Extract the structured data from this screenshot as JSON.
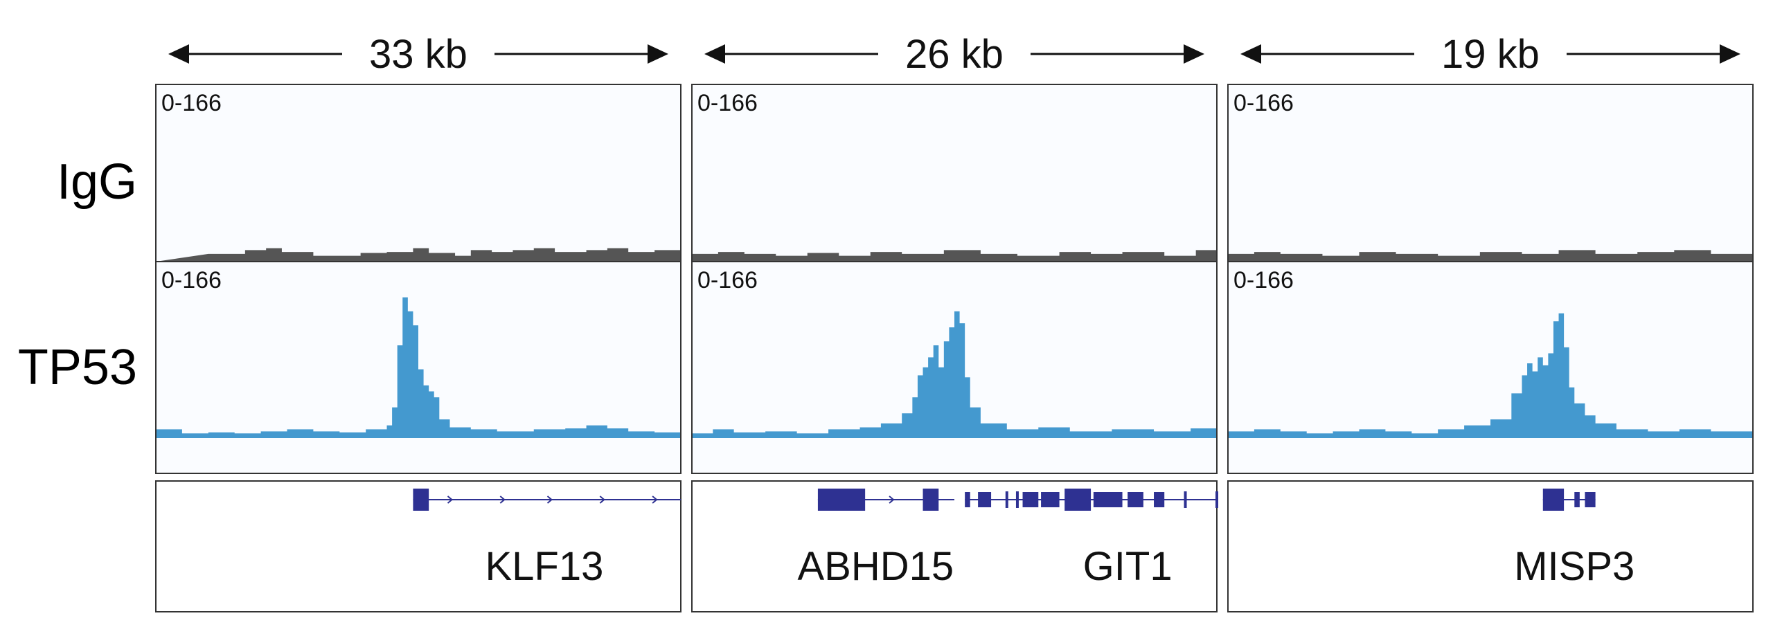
{
  "chart_data": {
    "type": "area",
    "rows": [
      {
        "label": "IgG",
        "range_label": "0-166",
        "color": "#555555"
      },
      {
        "label": "TP53",
        "range_label": "0-166",
        "color": "#4499cf"
      }
    ],
    "gene_color": "#2e3192",
    "track_background": "#fafcff",
    "ylim": [
      0,
      166
    ],
    "panels": [
      {
        "span_label": "33 kb",
        "genes": [
          {
            "name": "KLF13",
            "label_pos": 0.74
          }
        ],
        "features": [
          {
            "type": "line",
            "x0": 0.49,
            "x1": 1.0
          },
          {
            "type": "exon",
            "x0": 0.49,
            "x1": 0.52,
            "thick": true
          },
          {
            "type": "chevrons",
            "at": [
              0.56,
              0.66,
              0.75,
              0.85,
              0.95
            ]
          }
        ],
        "igg": [
          [
            0.1,
            8
          ],
          [
            0.17,
            12
          ],
          [
            0.21,
            14
          ],
          [
            0.24,
            10
          ],
          [
            0.3,
            6
          ],
          [
            0.39,
            9
          ],
          [
            0.44,
            10
          ],
          [
            0.49,
            14
          ],
          [
            0.52,
            9
          ],
          [
            0.57,
            6
          ],
          [
            0.6,
            12
          ],
          [
            0.64,
            10
          ],
          [
            0.68,
            12
          ],
          [
            0.72,
            14
          ],
          [
            0.76,
            10
          ],
          [
            0.82,
            12
          ],
          [
            0.86,
            14
          ],
          [
            0.9,
            10
          ],
          [
            0.95,
            12
          ]
        ],
        "tp53": [
          [
            0.0,
            8
          ],
          [
            0.05,
            4
          ],
          [
            0.1,
            5
          ],
          [
            0.15,
            4
          ],
          [
            0.2,
            6
          ],
          [
            0.25,
            8
          ],
          [
            0.3,
            6
          ],
          [
            0.35,
            5
          ],
          [
            0.4,
            8
          ],
          [
            0.44,
            12
          ],
          [
            0.45,
            30
          ],
          [
            0.46,
            92
          ],
          [
            0.47,
            140
          ],
          [
            0.48,
            126
          ],
          [
            0.49,
            112
          ],
          [
            0.5,
            68
          ],
          [
            0.51,
            52
          ],
          [
            0.52,
            46
          ],
          [
            0.53,
            40
          ],
          [
            0.54,
            18
          ],
          [
            0.56,
            10
          ],
          [
            0.6,
            8
          ],
          [
            0.65,
            6
          ],
          [
            0.72,
            8
          ],
          [
            0.78,
            9
          ],
          [
            0.82,
            12
          ],
          [
            0.86,
            9
          ],
          [
            0.9,
            6
          ],
          [
            0.95,
            5
          ],
          [
            1.0,
            4
          ]
        ]
      },
      {
        "span_label": "26 kb",
        "genes": [
          {
            "name": "ABHD15",
            "label_pos": 0.35
          },
          {
            "name": "GIT1",
            "label_pos": 0.83
          }
        ],
        "features": [
          {
            "type": "line",
            "x0": 0.24,
            "x1": 0.5
          },
          {
            "type": "exon",
            "x0": 0.24,
            "x1": 0.33,
            "thick": true
          },
          {
            "type": "exon",
            "x0": 0.44,
            "x1": 0.47,
            "thick": true
          },
          {
            "type": "chevrons",
            "at": [
              0.38
            ]
          },
          {
            "type": "line",
            "x0": 0.52,
            "x1": 1.0
          },
          {
            "type": "exon",
            "x0": 0.52,
            "x1": 0.53,
            "thick": false
          },
          {
            "type": "exon",
            "x0": 0.545,
            "x1": 0.57,
            "thick": false
          },
          {
            "type": "exon",
            "x0": 0.63,
            "x1": 0.66,
            "thick": false
          },
          {
            "type": "exon",
            "x0": 0.665,
            "x1": 0.7,
            "thick": false
          },
          {
            "type": "exon",
            "x0": 0.71,
            "x1": 0.76,
            "thick": true
          },
          {
            "type": "exon",
            "x0": 0.765,
            "x1": 0.82,
            "thick": false
          },
          {
            "type": "exon",
            "x0": 0.83,
            "x1": 0.86,
            "thick": false
          },
          {
            "type": "exon",
            "x0": 0.88,
            "x1": 0.9,
            "thick": false
          },
          {
            "type": "tick",
            "at": [
              0.6,
              0.62,
              0.94,
              1.0
            ]
          }
        ],
        "igg": [
          [
            0.0,
            8
          ],
          [
            0.05,
            10
          ],
          [
            0.1,
            8
          ],
          [
            0.16,
            6
          ],
          [
            0.22,
            9
          ],
          [
            0.28,
            6
          ],
          [
            0.34,
            10
          ],
          [
            0.4,
            8
          ],
          [
            0.48,
            12
          ],
          [
            0.55,
            8
          ],
          [
            0.62,
            6
          ],
          [
            0.7,
            10
          ],
          [
            0.76,
            8
          ],
          [
            0.82,
            10
          ],
          [
            0.9,
            6
          ],
          [
            0.96,
            12
          ],
          [
            1.0,
            14
          ]
        ],
        "tp53": [
          [
            0.0,
            4
          ],
          [
            0.04,
            8
          ],
          [
            0.08,
            5
          ],
          [
            0.14,
            6
          ],
          [
            0.2,
            4
          ],
          [
            0.26,
            8
          ],
          [
            0.32,
            10
          ],
          [
            0.36,
            14
          ],
          [
            0.4,
            24
          ],
          [
            0.42,
            40
          ],
          [
            0.43,
            62
          ],
          [
            0.44,
            70
          ],
          [
            0.45,
            80
          ],
          [
            0.46,
            92
          ],
          [
            0.47,
            70
          ],
          [
            0.48,
            96
          ],
          [
            0.49,
            110
          ],
          [
            0.5,
            126
          ],
          [
            0.51,
            114
          ],
          [
            0.52,
            60
          ],
          [
            0.53,
            30
          ],
          [
            0.55,
            14
          ],
          [
            0.6,
            8
          ],
          [
            0.66,
            10
          ],
          [
            0.72,
            6
          ],
          [
            0.8,
            8
          ],
          [
            0.88,
            6
          ],
          [
            0.95,
            9
          ],
          [
            1.0,
            4
          ]
        ]
      },
      {
        "span_label": "19 kb",
        "genes": [
          {
            "name": "MISP3",
            "label_pos": 0.66
          }
        ],
        "features": [
          {
            "type": "line",
            "x0": 0.6,
            "x1": 0.7
          },
          {
            "type": "exon",
            "x0": 0.6,
            "x1": 0.64,
            "thick": true
          },
          {
            "type": "exon",
            "x0": 0.66,
            "x1": 0.67,
            "thick": false
          },
          {
            "type": "exon",
            "x0": 0.68,
            "x1": 0.7,
            "thick": false
          }
        ],
        "igg": [
          [
            0.0,
            8
          ],
          [
            0.05,
            10
          ],
          [
            0.1,
            8
          ],
          [
            0.18,
            6
          ],
          [
            0.25,
            10
          ],
          [
            0.32,
            8
          ],
          [
            0.4,
            6
          ],
          [
            0.48,
            10
          ],
          [
            0.56,
            8
          ],
          [
            0.63,
            12
          ],
          [
            0.7,
            8
          ],
          [
            0.78,
            10
          ],
          [
            0.85,
            12
          ],
          [
            0.92,
            8
          ],
          [
            1.0,
            10
          ]
        ],
        "tp53": [
          [
            0.0,
            6
          ],
          [
            0.05,
            8
          ],
          [
            0.1,
            6
          ],
          [
            0.15,
            4
          ],
          [
            0.2,
            6
          ],
          [
            0.25,
            8
          ],
          [
            0.3,
            6
          ],
          [
            0.35,
            4
          ],
          [
            0.4,
            8
          ],
          [
            0.45,
            12
          ],
          [
            0.5,
            18
          ],
          [
            0.54,
            44
          ],
          [
            0.56,
            62
          ],
          [
            0.57,
            74
          ],
          [
            0.58,
            66
          ],
          [
            0.59,
            80
          ],
          [
            0.6,
            72
          ],
          [
            0.61,
            84
          ],
          [
            0.62,
            116
          ],
          [
            0.63,
            124
          ],
          [
            0.64,
            90
          ],
          [
            0.65,
            50
          ],
          [
            0.66,
            34
          ],
          [
            0.68,
            22
          ],
          [
            0.7,
            14
          ],
          [
            0.74,
            8
          ],
          [
            0.8,
            6
          ],
          [
            0.86,
            8
          ],
          [
            0.92,
            6
          ],
          [
            1.0,
            4
          ]
        ]
      }
    ]
  }
}
